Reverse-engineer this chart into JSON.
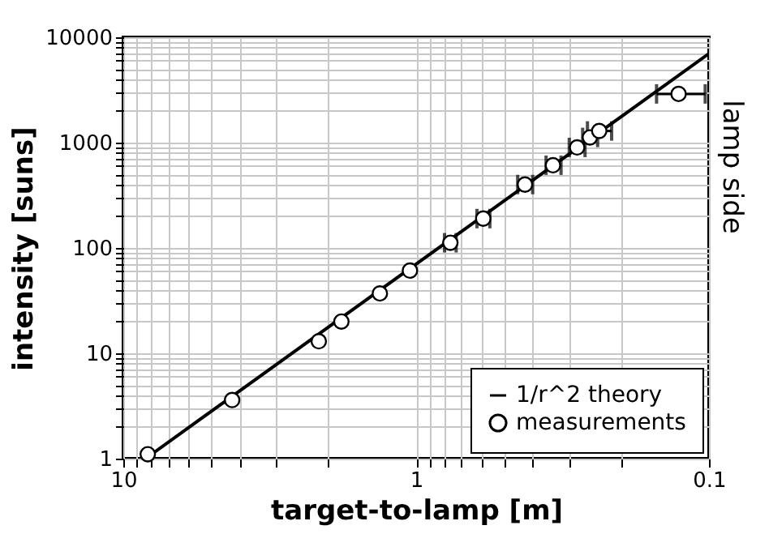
{
  "chart_data": {
    "type": "scatter",
    "xlabel": "target-to-lamp [m]",
    "ylabel": "intensity [suns]",
    "y2label": "lamp side",
    "log": "xy",
    "grid": true,
    "legend": "bottom right",
    "marker": "circle",
    "xlim": [
      10,
      0.1
    ],
    "ylim": [
      1,
      10000
    ],
    "xticks": [
      {
        "value": 0.1,
        "label": "0.1"
      },
      {
        "value": 0.2,
        "label": null
      },
      {
        "value": 0.3,
        "label": null
      },
      {
        "value": 0.4,
        "label": null
      },
      {
        "value": 0.5,
        "label": null
      },
      {
        "value": 0.6,
        "label": null
      },
      {
        "value": 0.7,
        "label": null
      },
      {
        "value": 0.8,
        "label": null
      },
      {
        "value": 0.9,
        "label": null
      },
      1,
      {
        "value": 2,
        "label": null
      },
      {
        "value": 3,
        "label": null
      },
      {
        "value": 4,
        "label": null
      },
      {
        "value": 5,
        "label": null
      },
      {
        "value": 6,
        "label": null
      },
      {
        "value": 7,
        "label": null
      },
      {
        "value": 8,
        "label": null
      },
      {
        "value": 9,
        "label": null
      },
      10
    ],
    "yticks": [
      1,
      {
        "value": 2,
        "label": null
      },
      {
        "value": 3,
        "label": null
      },
      {
        "value": 4,
        "label": null
      },
      {
        "value": 5,
        "label": null
      },
      {
        "value": 6,
        "label": null
      },
      {
        "value": 7,
        "label": null
      },
      {
        "value": 8,
        "label": null
      },
      {
        "value": 9,
        "label": null
      },
      10,
      {
        "value": 20,
        "label": null
      },
      {
        "value": 30,
        "label": null
      },
      {
        "value": 40,
        "label": null
      },
      {
        "value": 50,
        "label": null
      },
      {
        "value": 60,
        "label": null
      },
      {
        "value": 70,
        "label": null
      },
      {
        "value": 80,
        "label": null
      },
      {
        "value": 90,
        "label": null
      },
      100,
      {
        "value": 200,
        "label": null
      },
      {
        "value": 300,
        "label": null
      },
      {
        "value": 400,
        "label": null
      },
      {
        "value": 500,
        "label": null
      },
      {
        "value": 600,
        "label": null
      },
      {
        "value": 700,
        "label": null
      },
      {
        "value": 800,
        "label": null
      },
      {
        "value": 900,
        "label": null
      },
      1000,
      {
        "value": 2000,
        "label": null
      },
      {
        "value": 3000,
        "label": null
      },
      {
        "value": 4000,
        "label": null
      },
      {
        "value": 5000,
        "label": null
      },
      {
        "value": 6000,
        "label": null
      },
      {
        "value": 7000,
        "label": null
      },
      {
        "value": 8000,
        "label": null
      },
      {
        "value": 9000,
        "label": null
      },
      10000
    ],
    "series": [
      {
        "name": "1/r^2 theory",
        "type": "line",
        "color": "#000000",
        "line_style": "solid",
        "marker": "none",
        "x": [
          8.4,
          0.1
        ],
        "values": [
          1,
          7000
        ]
      },
      {
        "name": "measurements",
        "color": "#000000",
        "x": [
          8.25,
          4.25,
          2.15,
          1.8,
          1.33,
          1.05,
          0.764,
          0.59,
          0.425,
          0.341,
          0.282,
          0.255,
          0.237,
          0.127
        ],
        "values": [
          1.1,
          3.6,
          13,
          20,
          37,
          61,
          112,
          190,
          400,
          610,
          900,
          1120,
          1290,
          2900
        ],
        "xerrors": [
          null,
          null,
          null,
          null,
          null,
          null,
          [
            0.73,
            0.8
          ],
          [
            0.56,
            0.62
          ],
          [
            0.4,
            0.45
          ],
          [
            0.32,
            0.36
          ],
          [
            0.265,
            0.3
          ],
          [
            0.24,
            0.27
          ],
          [
            0.215,
            0.26
          ],
          [
            0.103,
            0.151
          ]
        ]
      }
    ]
  }
}
